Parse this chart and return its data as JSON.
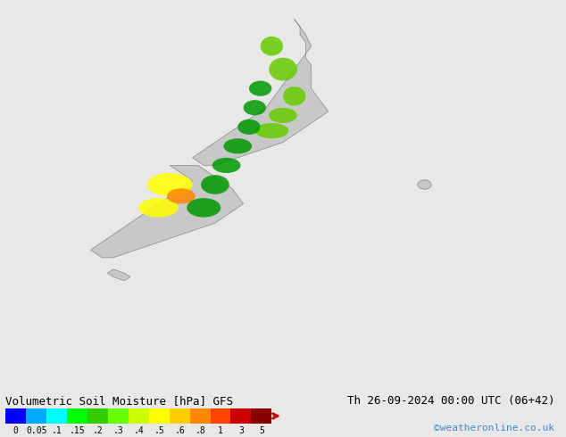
{
  "title": "",
  "background_color": "#e8e8e8",
  "colorbar_label": "Volumetric Soil Moisture [hPa] GFS",
  "colorbar_ticks": [
    "0",
    "0.05",
    ".1",
    ".15",
    ".2",
    ".3",
    ".4",
    ".5",
    ".6",
    ".8",
    "1",
    "3",
    "5"
  ],
  "colorbar_colors": [
    "#0000ff",
    "#00aaff",
    "#00ffff",
    "#00ff00",
    "#33cc00",
    "#66ff00",
    "#ccff00",
    "#ffff00",
    "#ffcc00",
    "#ff8800",
    "#ff4400",
    "#cc0000",
    "#880000"
  ],
  "date_text": "Th 26-09-2024 00:00 UTC (06+42)",
  "credit_text": "©weatheronline.co.uk",
  "map_bg": "#e8e8e8",
  "land_color": "#d0d0d0",
  "figwidth": 6.34,
  "figheight": 4.9,
  "dpi": 100
}
